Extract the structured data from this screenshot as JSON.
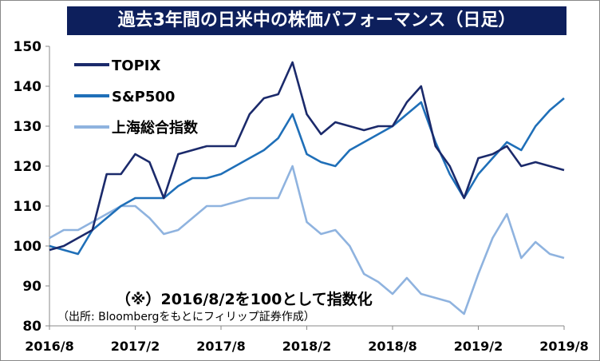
{
  "header": {
    "title": "過去3年間の日米中の株価パフォーマンス（日足）"
  },
  "note": "（※）2016/8/2を100として指数化",
  "source": "（出所: Bloombergをもとにフィリップ証券作成）",
  "colors": {
    "topix": "#1b2a6b",
    "sp500": "#1f6fb8",
    "shanghai": "#8fb3df",
    "title_bg": "#0d1f5c"
  },
  "chart_data": {
    "type": "line",
    "title": "過去3年間の日米中の株価パフォーマンス（日足）",
    "xlabel": "",
    "ylabel": "",
    "ylim": [
      80,
      150
    ],
    "yticks": [
      "150",
      "140",
      "130",
      "120",
      "110",
      "100",
      "90",
      "80"
    ],
    "xticks": [
      "2016/8",
      "2017/2",
      "2017/8",
      "2018/2",
      "2018/8",
      "2019/2",
      "2019/8"
    ],
    "grid": false,
    "legend_position": "top-left",
    "x": [
      "2016-08",
      "2016-09",
      "2016-10",
      "2016-11",
      "2016-12",
      "2017-01",
      "2017-02",
      "2017-03",
      "2017-04",
      "2017-05",
      "2017-06",
      "2017-07",
      "2017-08",
      "2017-09",
      "2017-10",
      "2017-11",
      "2017-12",
      "2018-01",
      "2018-02",
      "2018-03",
      "2018-04",
      "2018-05",
      "2018-06",
      "2018-07",
      "2018-08",
      "2018-09",
      "2018-10",
      "2018-11",
      "2018-12",
      "2019-01",
      "2019-02",
      "2019-03",
      "2019-04",
      "2019-05",
      "2019-06",
      "2019-07",
      "2019-08"
    ],
    "series": [
      {
        "name": "TOPIX",
        "values": [
          99,
          100,
          102,
          104,
          118,
          118,
          123,
          121,
          112,
          123,
          124,
          125,
          125,
          125,
          133,
          137,
          138,
          146,
          133,
          128,
          131,
          130,
          129,
          130,
          130,
          136,
          140,
          125,
          120,
          112,
          122,
          123,
          125,
          120,
          121,
          120,
          119
        ]
      },
      {
        "name": "S&P500",
        "values": [
          100,
          99,
          98,
          104,
          107,
          110,
          112,
          112,
          112,
          115,
          117,
          117,
          118,
          120,
          122,
          124,
          127,
          133,
          123,
          121,
          120,
          124,
          126,
          128,
          130,
          133,
          136,
          126,
          118,
          112,
          118,
          122,
          126,
          124,
          130,
          134,
          137
        ]
      },
      {
        "name": "上海総合指数",
        "values": [
          102,
          104,
          104,
          106,
          108,
          110,
          110,
          107,
          103,
          104,
          107,
          110,
          110,
          111,
          112,
          112,
          112,
          120,
          106,
          103,
          104,
          100,
          93,
          91,
          88,
          92,
          88,
          87,
          86,
          83,
          93,
          102,
          108,
          97,
          101,
          98,
          97
        ]
      }
    ]
  }
}
